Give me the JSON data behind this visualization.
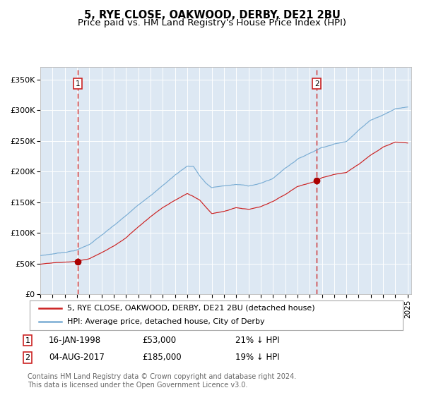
{
  "title": "5, RYE CLOSE, OAKWOOD, DERBY, DE21 2BU",
  "subtitle": "Price paid vs. HM Land Registry's House Price Index (HPI)",
  "ylim": [
    0,
    370000
  ],
  "yticks": [
    0,
    50000,
    100000,
    150000,
    200000,
    250000,
    300000,
    350000
  ],
  "ytick_labels": [
    "£0",
    "£50K",
    "£100K",
    "£150K",
    "£200K",
    "£250K",
    "£300K",
    "£350K"
  ],
  "hpi_color": "#7aadd4",
  "price_color": "#cc2222",
  "marker_color": "#aa0000",
  "vline_color": "#cc2222",
  "bg_color": "#dde8f3",
  "grid_color": "#ffffff",
  "purchase1_year": 1998.04,
  "purchase1_price": 53000,
  "purchase2_year": 2017.58,
  "purchase2_price": 185000,
  "legend_label1": "5, RYE CLOSE, OAKWOOD, DERBY, DE21 2BU (detached house)",
  "legend_label2": "HPI: Average price, detached house, City of Derby",
  "annotation1_date": "16-JAN-1998",
  "annotation1_price": "£53,000",
  "annotation1_hpi": "21% ↓ HPI",
  "annotation2_date": "04-AUG-2017",
  "annotation2_price": "£185,000",
  "annotation2_hpi": "19% ↓ HPI",
  "footer": "Contains HM Land Registry data © Crown copyright and database right 2024.\nThis data is licensed under the Open Government Licence v3.0."
}
